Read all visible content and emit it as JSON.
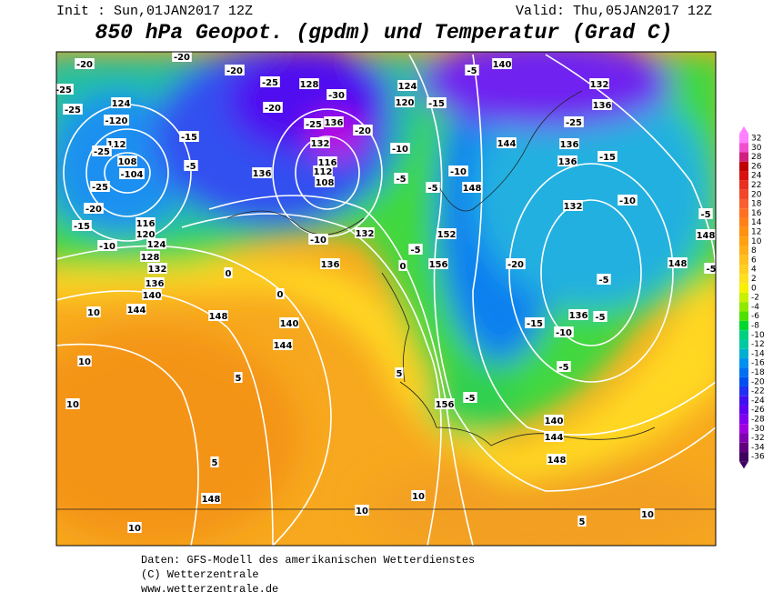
{
  "header": {
    "init": "Init : Sun,01JAN2017 12Z",
    "valid": "Valid: Thu,05JAN2017 12Z",
    "title": "850 hPa Geopot. (gpdm) und Temperatur (Grad C)"
  },
  "colorbar": {
    "ticks": [
      32,
      30,
      28,
      26,
      24,
      22,
      20,
      18,
      16,
      14,
      12,
      10,
      8,
      6,
      4,
      2,
      0,
      -2,
      -4,
      -6,
      -8,
      -10,
      -12,
      -14,
      -16,
      -18,
      -20,
      -22,
      -24,
      -26,
      -28,
      -30,
      -32,
      -34,
      -36
    ],
    "colors": [
      "#ff80ff",
      "#f050d0",
      "#d02080",
      "#c00000",
      "#d81010",
      "#e83020",
      "#f04828",
      "#f86030",
      "#ff7020",
      "#ff8018",
      "#ff9010",
      "#ffa010",
      "#ffb018",
      "#ffc020",
      "#ffd020",
      "#ffe020",
      "#f8f000",
      "#c8f000",
      "#90e800",
      "#50e000",
      "#00d830",
      "#00d080",
      "#00c8a0",
      "#00b0d0",
      "#0090f0",
      "#0070f0",
      "#0050f0",
      "#2030f0",
      "#4010f0",
      "#6000f0",
      "#8000f0",
      "#a000e0",
      "#8000b0",
      "#600080",
      "#400060"
    ]
  },
  "map": {
    "labels": [
      "-20",
      "-20",
      "-20",
      "-25",
      "124",
      "-25",
      "-120",
      "-15",
      "112",
      "-25",
      "108",
      "-104",
      "-5",
      "-25",
      "-20",
      "-15",
      "116",
      "120",
      "-10",
      "124",
      "128",
      "132",
      "136",
      "140",
      "144",
      "10",
      "10",
      "10",
      "-25",
      "-20",
      "-25",
      "136",
      "128",
      "-30",
      "-20",
      "132",
      "116",
      "112",
      "108",
      "136",
      "-10",
      "124",
      "120",
      "-15",
      "-5",
      "140",
      "132",
      "136",
      "-25",
      "144",
      "136",
      "136",
      "-15",
      "-10",
      "148",
      "-5",
      "132",
      "-10",
      "152",
      "156",
      "-20",
      "-5",
      "148",
      "-15",
      "-10",
      "136",
      "-5",
      "-5",
      "0",
      "0",
      "148",
      "140",
      "144",
      "5",
      "5",
      "156",
      "-5",
      "140",
      "144",
      "148",
      "148",
      "10",
      "10",
      "10",
      "5",
      "10",
      "5",
      "136",
      "132",
      "-5",
      "-5",
      "-10",
      "0",
      "-5",
      "148",
      "-5"
    ]
  },
  "footer": {
    "lines": [
      "Daten: GFS-Modell des amerikanischen Wetterdienstes",
      "(C) Wetterzentrale",
      "www.wetterzentrale.de"
    ]
  }
}
